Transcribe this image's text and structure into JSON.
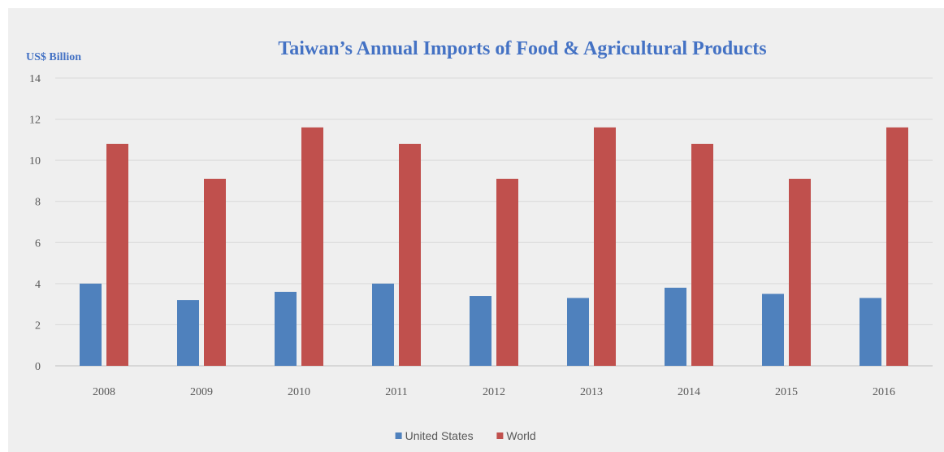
{
  "chart_data": {
    "type": "bar",
    "title": "Taiwan’s Annual Imports of Food & Agricultural Products",
    "ylabel": "US$ Billion",
    "xlabel": "",
    "categories": [
      "2008",
      "2009",
      "2010",
      "2011",
      "2012",
      "2013",
      "2014",
      "2015",
      "2016"
    ],
    "series": [
      {
        "name": "United States",
        "color": "#4f81bd",
        "values": [
          4.0,
          3.2,
          3.6,
          4.0,
          3.4,
          3.3,
          3.8,
          3.5,
          3.3
        ]
      },
      {
        "name": "World",
        "color": "#c0504d",
        "values": [
          10.8,
          9.1,
          11.6,
          10.8,
          9.1,
          11.6,
          10.8,
          9.1,
          11.6
        ]
      }
    ],
    "ylim": [
      0,
      14
    ],
    "yticks": [
      "0",
      "2",
      "4",
      "6",
      "8",
      "10",
      "12",
      "14"
    ],
    "grid": true,
    "legend": "bottom-center"
  }
}
